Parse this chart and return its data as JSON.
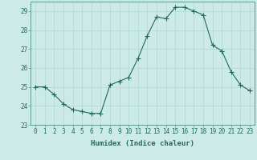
{
  "x": [
    0,
    1,
    2,
    3,
    4,
    5,
    6,
    7,
    8,
    9,
    10,
    11,
    12,
    13,
    14,
    15,
    16,
    17,
    18,
    19,
    20,
    21,
    22,
    23
  ],
  "y": [
    25.0,
    25.0,
    24.6,
    24.1,
    23.8,
    23.7,
    23.6,
    23.6,
    25.1,
    25.3,
    25.5,
    26.5,
    27.7,
    28.7,
    28.6,
    29.2,
    29.2,
    29.0,
    28.8,
    27.2,
    26.9,
    25.8,
    25.1,
    24.8
  ],
  "line_color": "#1f6b5a",
  "marker": "+",
  "marker_size": 4,
  "marker_color": "#1f6b5a",
  "bg_color": "#cceae7",
  "grid_color": "#b0d8d4",
  "xlabel": "Humidex (Indice chaleur)",
  "xlim": [
    -0.5,
    23.5
  ],
  "ylim": [
    23,
    29.5
  ],
  "yticks": [
    23,
    24,
    25,
    26,
    27,
    28,
    29
  ],
  "xticks": [
    0,
    1,
    2,
    3,
    4,
    5,
    6,
    7,
    8,
    9,
    10,
    11,
    12,
    13,
    14,
    15,
    16,
    17,
    18,
    19,
    20,
    21,
    22,
    23
  ],
  "label_fontsize": 6.5,
  "tick_fontsize": 5.5
}
